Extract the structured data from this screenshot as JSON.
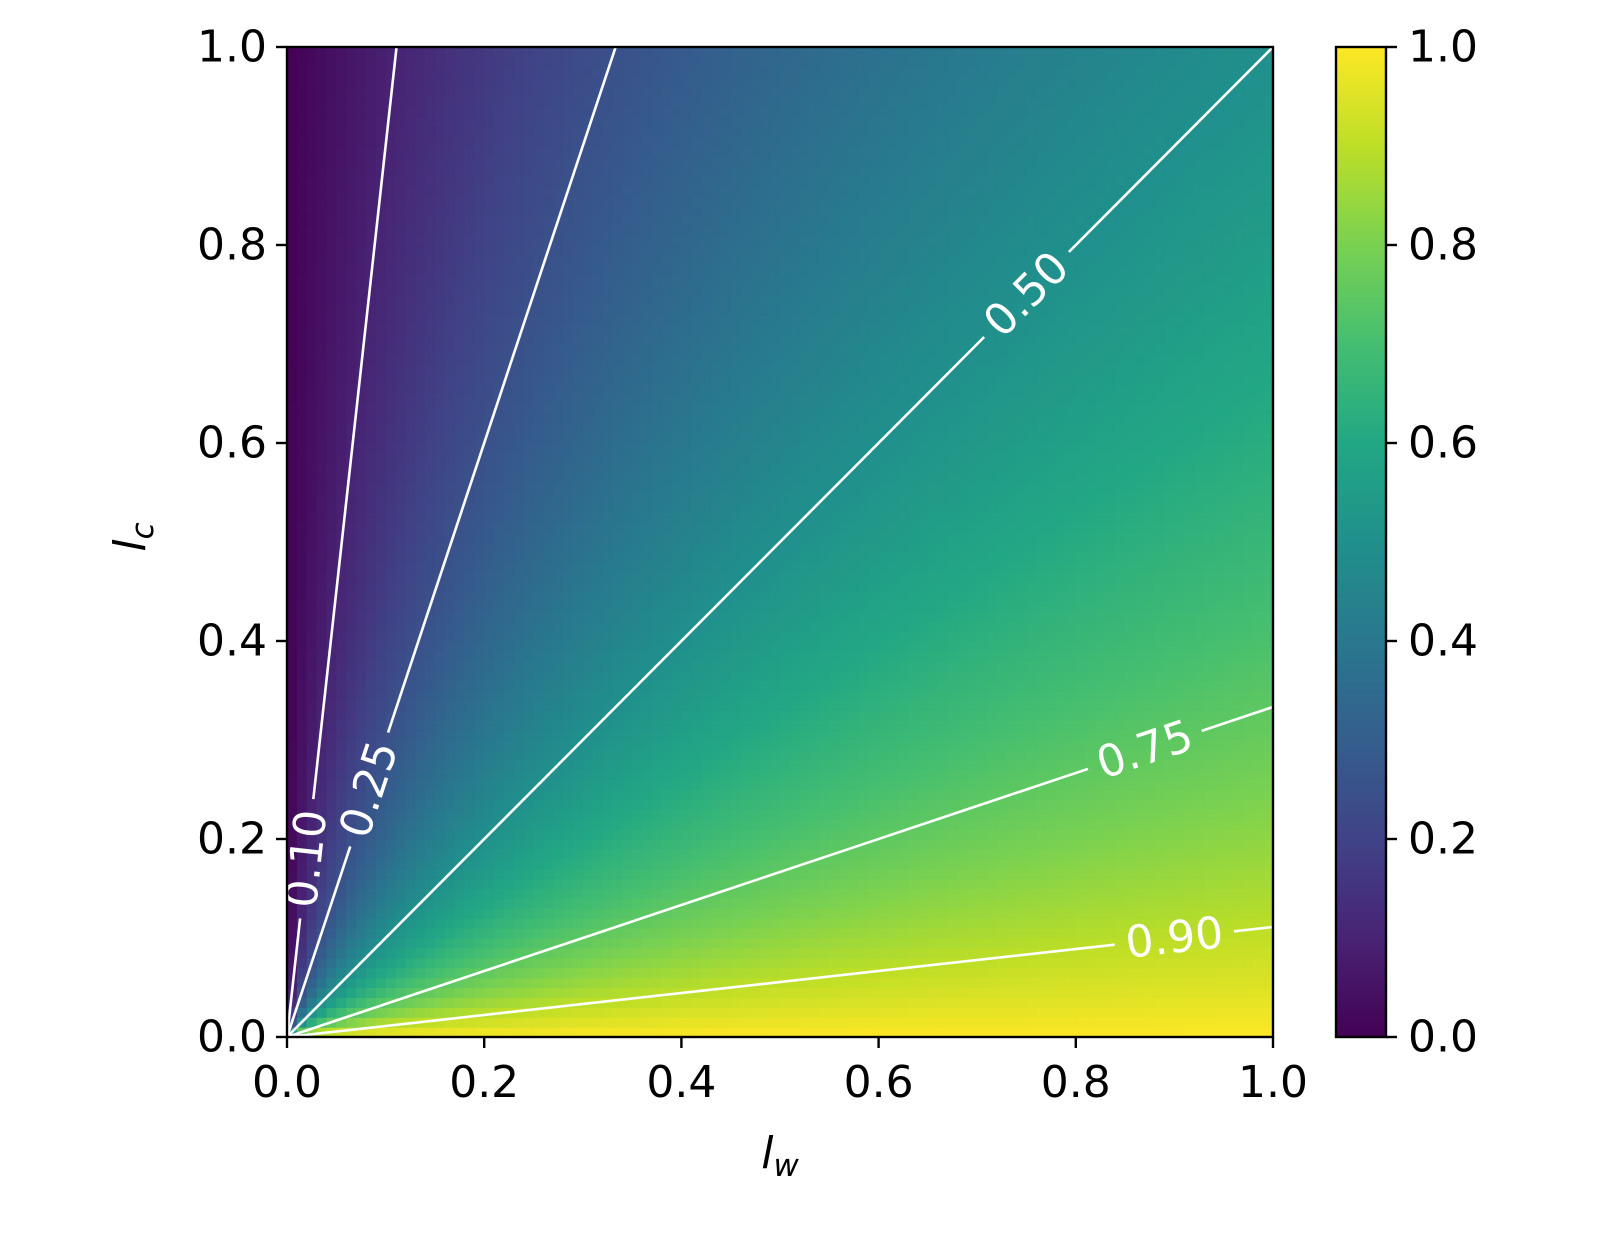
{
  "chart_data": {
    "type": "heatmap",
    "title": "",
    "xlabel": {
      "main": "l",
      "sub": "w"
    },
    "ylabel": {
      "main": "l",
      "sub": "c"
    },
    "xlim": [
      0.0,
      1.0
    ],
    "ylim": [
      0.0,
      1.0
    ],
    "x_ticks": [
      "0.0",
      "0.2",
      "0.4",
      "0.6",
      "0.8",
      "1.0"
    ],
    "y_ticks": [
      "0.0",
      "0.2",
      "0.4",
      "0.6",
      "0.8",
      "1.0"
    ],
    "field": "l_w / (l_w + l_c)",
    "colormap": "viridis",
    "colorbar": {
      "range": [
        0.0,
        1.0
      ],
      "ticks": [
        "0.0",
        "0.2",
        "0.4",
        "0.6",
        "0.8",
        "1.0"
      ],
      "placement": "right"
    },
    "contours": [
      {
        "level": 0.1,
        "label": "0.10",
        "color": "#ffffff"
      },
      {
        "level": 0.25,
        "label": "0.25",
        "color": "#ffffff"
      },
      {
        "level": 0.5,
        "label": "0.50",
        "color": "#ffffff"
      },
      {
        "level": 0.75,
        "label": "0.75",
        "color": "#ffffff"
      },
      {
        "level": 0.9,
        "label": "0.90",
        "color": "#ffffff"
      }
    ],
    "grid": false
  }
}
